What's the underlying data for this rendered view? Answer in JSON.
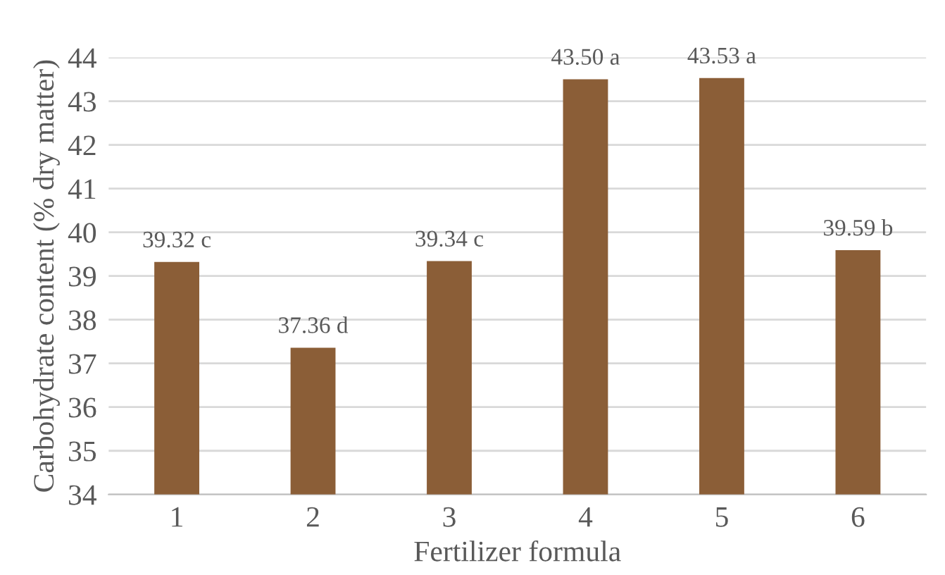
{
  "chart_data": {
    "type": "bar",
    "xlabel": "Fertilizer formula",
    "ylabel": "Carbohydrate content (% dry matter)",
    "categories": [
      "1",
      "2",
      "3",
      "4",
      "5",
      "6"
    ],
    "values": [
      39.32,
      37.36,
      39.34,
      43.5,
      43.53,
      39.59
    ],
    "value_labels": [
      "39.32 c",
      "37.36 d",
      "39.34 c",
      "43.50 a",
      "43.53 a",
      "39.59 b"
    ],
    "color": "#8b5e37",
    "ylim": [
      34,
      44
    ],
    "yticks": [
      34,
      35,
      36,
      37,
      38,
      39,
      40,
      41,
      42,
      43,
      44
    ],
    "grid": "y",
    "legend": false
  }
}
